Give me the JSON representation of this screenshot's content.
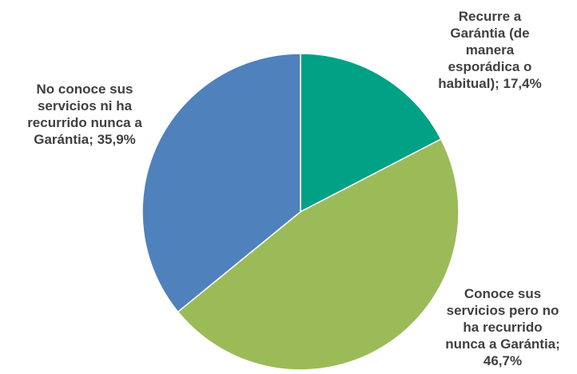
{
  "chart_data": {
    "type": "pie",
    "start_angle_deg": 0,
    "direction": "clockwise",
    "slices": [
      {
        "label": "Recurre a\nGarántia (de\nmanera\nesporádica o\nhabitual); 17,4%",
        "value": 17.4,
        "color": "#00a185"
      },
      {
        "label": "Conoce sus\nservicios pero no\nha recurrido\nnunca a Garántia;\n46,7%",
        "value": 46.7,
        "color": "#9bbb59"
      },
      {
        "label": "No conoce sus\nservicios ni ha\nrecurrido nunca a\nGarántia; 35,9%",
        "value": 35.9,
        "color": "#4f81bd"
      }
    ]
  }
}
